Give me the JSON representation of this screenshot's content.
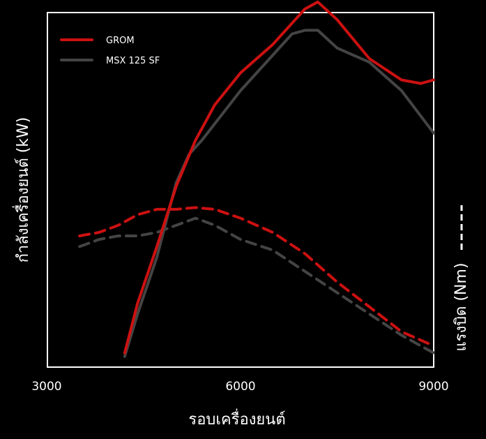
{
  "chart_data": {
    "type": "line",
    "title": "",
    "xlabel": "รอบเครื่องยนต์",
    "ylabel_left": "กำลังเครื่องยนต์ (kW)",
    "ylabel_right": "แรงบิด (Nm)",
    "x_ticks": [
      "3000",
      "6000",
      "9000"
    ],
    "xlim": [
      3000,
      9000
    ],
    "ylim": [
      0,
      100
    ],
    "grid": false,
    "legend_position": "top-left",
    "series": [
      {
        "name": "GROM",
        "metric": "power",
        "color": "#cc1111",
        "style": "solid",
        "x": [
          4200,
          4400,
          4700,
          5000,
          5300,
          5600,
          6000,
          6500,
          6800,
          7000,
          7200,
          7500,
          8000,
          8500,
          8800,
          9000
        ],
        "y": [
          4,
          18,
          34,
          51,
          64,
          74,
          83,
          91,
          97,
          101,
          103,
          98,
          87,
          81,
          80,
          81
        ]
      },
      {
        "name": "MSX 125 SF",
        "metric": "power",
        "color": "#444444",
        "style": "solid",
        "x": [
          4200,
          4400,
          4700,
          5000,
          5200,
          5400,
          6000,
          6500,
          6800,
          7000,
          7200,
          7500,
          8000,
          8500,
          9000
        ],
        "y": [
          3,
          15,
          31,
          52,
          60,
          64,
          78,
          88,
          94,
          95,
          95,
          90,
          86,
          78,
          66
        ]
      },
      {
        "name": "GROM",
        "metric": "torque",
        "color": "#cc1111",
        "style": "dashed",
        "x": [
          3500,
          3800,
          4100,
          4400,
          4700,
          5000,
          5300,
          5600,
          6000,
          6500,
          7000,
          7500,
          8000,
          8500,
          9000
        ],
        "y": [
          37,
          38,
          40,
          43,
          44.5,
          44.5,
          45,
          44.5,
          42,
          38,
          32,
          24,
          17,
          10,
          6
        ]
      },
      {
        "name": "MSX 125 SF",
        "metric": "torque",
        "color": "#444444",
        "style": "dashed",
        "x": [
          3500,
          3800,
          4100,
          4400,
          4700,
          5000,
          5300,
          5600,
          6000,
          6500,
          7000,
          7500,
          8000,
          8500,
          9000
        ],
        "y": [
          34,
          36,
          37,
          37,
          38,
          40,
          42,
          40,
          36,
          33,
          27,
          21,
          15,
          9,
          4
        ]
      }
    ]
  }
}
